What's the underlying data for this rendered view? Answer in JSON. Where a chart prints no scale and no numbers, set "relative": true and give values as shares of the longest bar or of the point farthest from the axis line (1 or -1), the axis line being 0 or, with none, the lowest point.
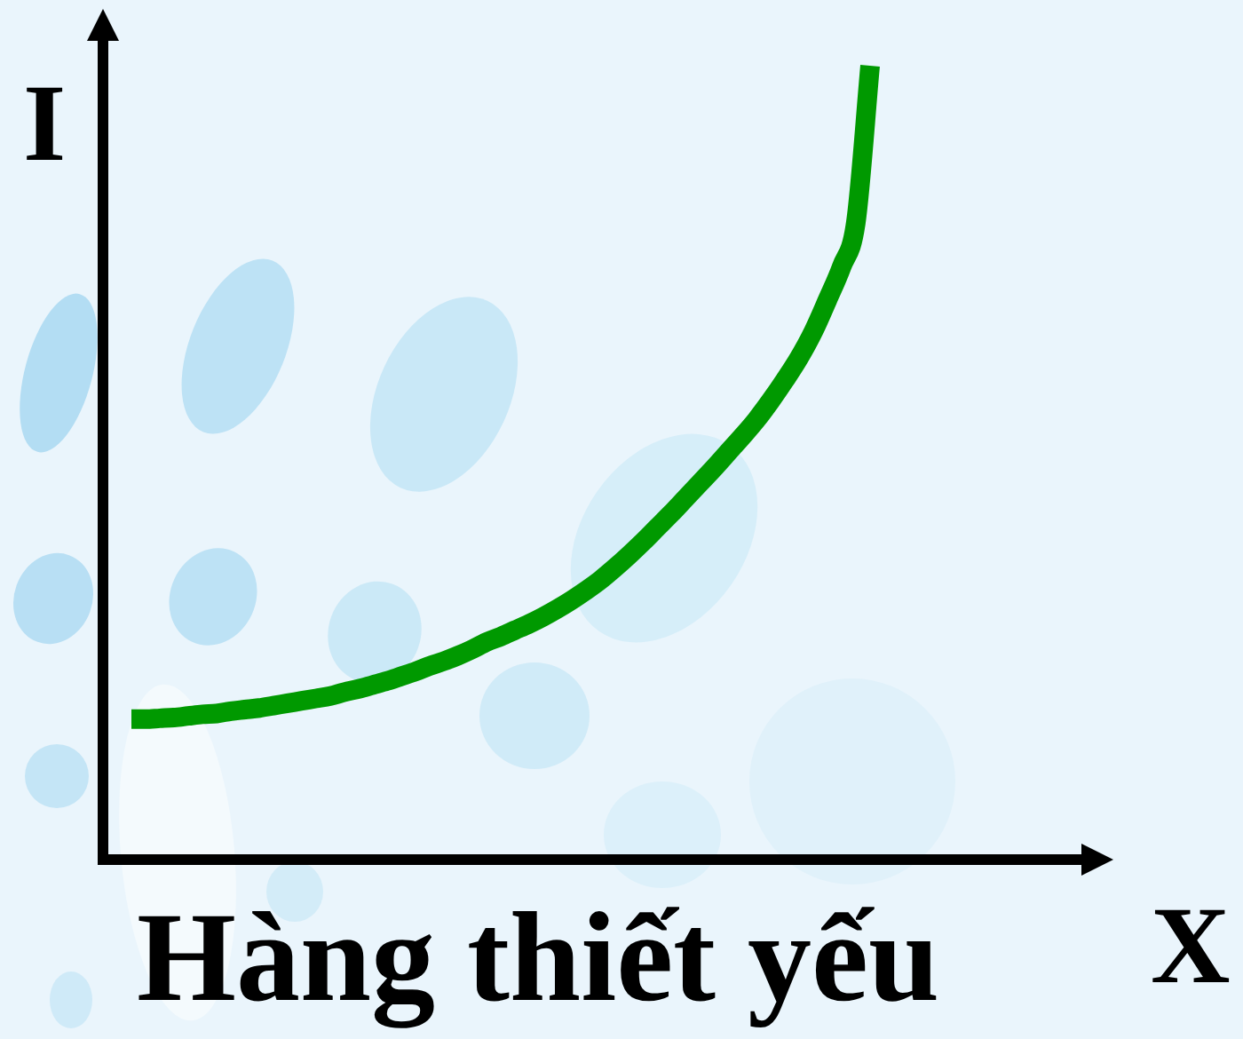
{
  "chart_data": {
    "type": "line",
    "title": "Hàng thiết yếu",
    "xlabel": "X",
    "ylabel": "I",
    "relative": true,
    "marker": "none",
    "line_style": "solid",
    "grid": false,
    "legend": false,
    "categories": [
      null,
      null,
      null,
      null,
      null,
      null,
      null,
      null,
      null,
      null,
      null,
      null,
      null,
      null,
      null,
      null,
      null,
      null,
      null,
      null,
      null,
      null,
      null,
      null,
      null,
      null,
      null,
      null,
      null,
      null,
      null,
      null,
      null,
      null,
      null,
      null,
      null,
      null,
      null,
      null,
      null,
      null,
      null,
      null,
      null,
      null,
      null,
      null,
      null,
      null,
      null,
      null,
      null,
      null,
      null,
      null,
      null,
      null,
      null,
      null,
      null,
      null,
      null,
      null,
      null,
      null,
      null,
      null,
      null,
      null,
      null,
      null
    ],
    "series": [
      {
        "color": "#009900",
        "values": [
          null,
          null,
          0.177,
          0.177,
          0.178,
          0.179,
          0.181,
          0.183,
          0.184,
          0.187,
          0.189,
          0.191,
          0.194,
          0.197,
          0.2,
          0.203,
          0.206,
          0.211,
          0.215,
          0.22,
          0.225,
          0.231,
          0.237,
          0.244,
          0.25,
          0.257,
          0.265,
          0.274,
          0.281,
          0.289,
          0.297,
          0.306,
          0.316,
          0.327,
          0.339,
          0.352,
          0.367,
          0.383,
          0.4,
          0.418,
          0.436,
          0.455,
          0.474,
          0.493,
          0.513,
          0.533,
          0.554,
          0.578,
          0.604,
          0.632,
          0.665,
          0.705,
          0.747,
          0.803,
          1,
          null,
          null,
          null,
          null,
          null,
          null,
          null,
          null,
          null,
          null,
          null,
          null,
          null,
          null,
          null,
          null,
          null
        ]
      }
    ]
  }
}
